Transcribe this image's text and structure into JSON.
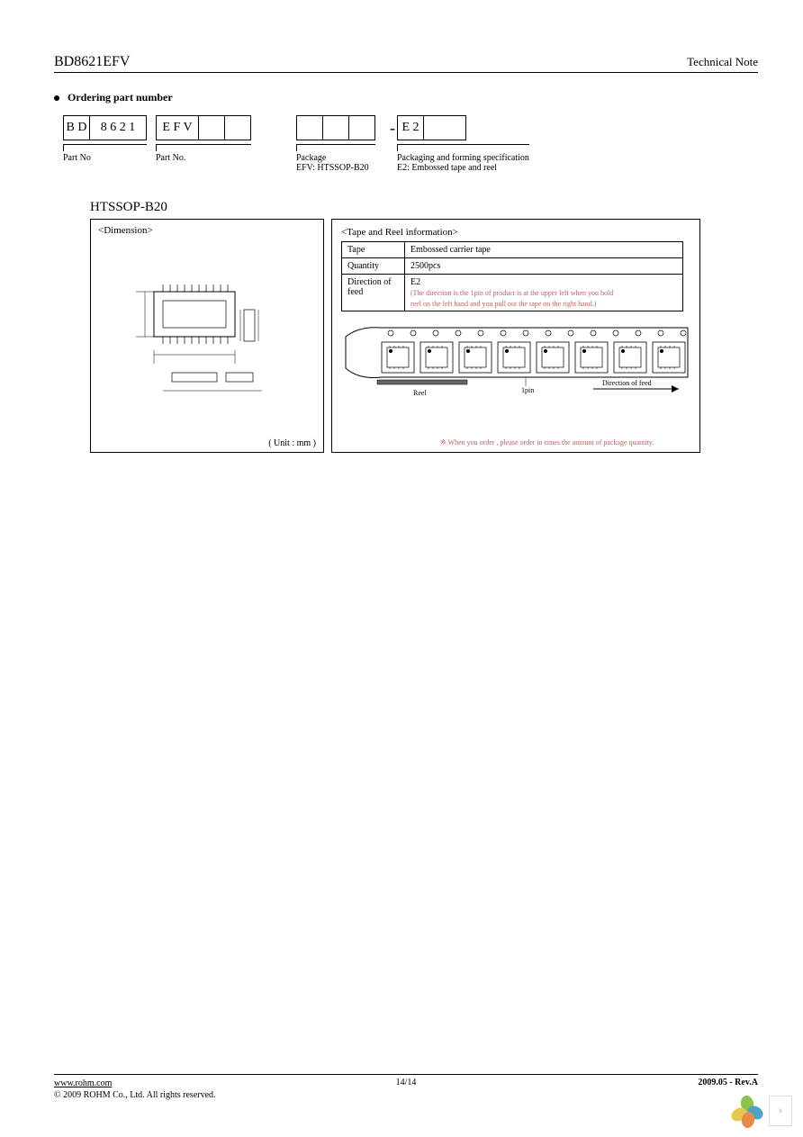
{
  "header": {
    "part_number": "BD8621EFV",
    "doc_type": "Technical Note"
  },
  "ordering": {
    "section_title": "Ordering part number",
    "groups": [
      {
        "cells": [
          "B D",
          "8 6 2 1"
        ],
        "label": "Part No"
      },
      {
        "cells": [
          "E F V",
          "",
          ""
        ],
        "label": "Part No."
      },
      {
        "cells": [
          "",
          "",
          ""
        ],
        "label": "Package",
        "sublabel": "EFV: HTSSOP-B20"
      },
      {
        "prefix": "-",
        "cells": [
          "E 2",
          ""
        ],
        "label": "Packaging and forming specification",
        "sublabel": "E2: Embossed tape and reel"
      }
    ]
  },
  "package": {
    "name": "HTSSOP-B20",
    "dimension": {
      "title": "<Dimension>",
      "unit": "( Unit : mm )"
    },
    "tape": {
      "title": "<Tape and Reel information>",
      "rows": [
        {
          "k": "Tape",
          "v": "Embossed carrier tape"
        },
        {
          "k": "Quantity",
          "v": "2500pcs"
        },
        {
          "k": "Direction of feed",
          "v": "E2",
          "note1": "(The direction is the 1pin of product is at the upper left when you hold",
          "note2": "reel on the left hand and you pull out the tape on the right hand.)"
        }
      ],
      "reel_label": "Reel",
      "pin_label": "1pin",
      "dir_label": "Direction of feed",
      "order_note": "※ When you order , please order in times the amount of package quantity."
    }
  },
  "footer": {
    "url": "www.rohm.com",
    "copyright": "© 2009 ROHM Co., Ltd. All rights reserved.",
    "page": "14/14",
    "rev": "2009.05 - Rev.A"
  },
  "colors": {
    "petal_green": "#8fc44a",
    "petal_blue": "#4aa7c4",
    "petal_yellow": "#e8c84a",
    "petal_orange": "#e88a4a"
  }
}
